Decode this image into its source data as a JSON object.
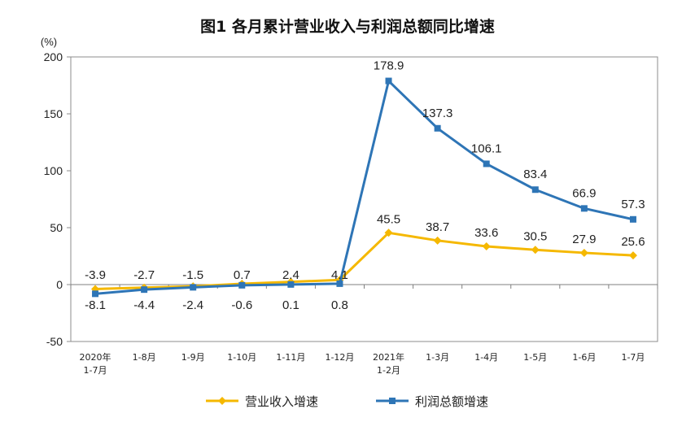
{
  "chart_data": {
    "type": "line",
    "title": "图1  各月累计营业收入与利润总额同比增速",
    "ylabel": "(%)",
    "xlabel": "",
    "ylim": [
      -50,
      200
    ],
    "yticks": [
      -50,
      0,
      50,
      100,
      150,
      200
    ],
    "grid": false,
    "legend_position": "bottom",
    "categories": [
      [
        "2020年",
        "1-7月"
      ],
      [
        "1-8月"
      ],
      [
        "1-9月"
      ],
      [
        "1-10月"
      ],
      [
        "1-11月"
      ],
      [
        "1-12月"
      ],
      [
        "2021年",
        "1-2月"
      ],
      [
        "1-3月"
      ],
      [
        "1-4月"
      ],
      [
        "1-5月"
      ],
      [
        "1-6月"
      ],
      [
        "1-7月"
      ]
    ],
    "series": [
      {
        "name": "营业收入增速",
        "color": "#F5B800",
        "values": [
          -3.9,
          -2.7,
          -1.5,
          0.7,
          2.4,
          4.1,
          45.5,
          38.7,
          33.6,
          30.5,
          27.9,
          25.6
        ],
        "labels": [
          "-3.9",
          "-2.7",
          "-1.5",
          "0.7",
          "2.4",
          "4.1",
          "45.5",
          "38.7",
          "33.6",
          "30.5",
          "27.9",
          "25.6"
        ]
      },
      {
        "name": "利润总额增速",
        "color": "#2E75B6",
        "values": [
          -8.1,
          -4.4,
          -2.4,
          -0.6,
          0.1,
          0.8,
          178.9,
          137.3,
          106.1,
          83.4,
          66.9,
          57.3
        ],
        "labels": [
          "-8.1",
          "-4.4",
          "-2.4",
          "-0.6",
          "0.1",
          "0.8",
          "178.9",
          "137.3",
          "106.1",
          "83.4",
          "66.9",
          "57.3"
        ]
      }
    ]
  }
}
